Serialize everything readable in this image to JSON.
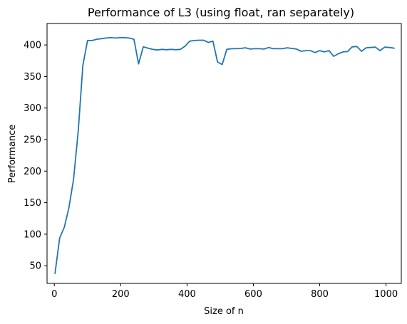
{
  "chart_data": {
    "type": "line",
    "title": "Performance of L3 (using float, ran separately)",
    "xlabel": "Size of n",
    "ylabel": "Performance",
    "xlim": [
      -22,
      1046
    ],
    "ylim": [
      22,
      434
    ],
    "x_ticks": [
      0,
      200,
      400,
      600,
      800,
      1000
    ],
    "y_ticks": [
      50,
      100,
      150,
      200,
      250,
      300,
      350,
      400
    ],
    "grid": false,
    "line_color": "#1f77b4",
    "series": [
      {
        "x": [
          2,
          16,
          30,
          44,
          58,
          72,
          86,
          100,
          114,
          128,
          142,
          156,
          170,
          184,
          198,
          212,
          226,
          240,
          254,
          268,
          282,
          296,
          310,
          324,
          338,
          352,
          366,
          380,
          394,
          408,
          422,
          436,
          450,
          464,
          478,
          492,
          506,
          520,
          534,
          548,
          562,
          576,
          590,
          604,
          618,
          632,
          646,
          660,
          674,
          688,
          702,
          716,
          730,
          744,
          758,
          772,
          786,
          800,
          814,
          828,
          842,
          856,
          870,
          884,
          898,
          912,
          926,
          940,
          954,
          968,
          982,
          996,
          1010,
          1024
        ],
        "y": [
          38,
          94,
          111,
          142,
          187,
          263,
          368,
          407,
          407,
          409,
          410,
          411,
          411.5,
          411,
          411.5,
          411.5,
          411,
          409,
          370,
          397,
          395,
          393,
          392,
          393,
          392.5,
          393,
          392.5,
          393,
          398,
          406,
          407,
          407.5,
          407.5,
          404,
          406,
          373,
          369,
          393,
          394,
          394,
          394.5,
          395.5,
          393.5,
          394,
          394,
          393.5,
          396,
          394,
          394,
          394,
          395.5,
          394.5,
          393.5,
          390,
          391,
          391,
          388,
          391,
          389,
          391,
          382,
          386,
          389,
          389.5,
          397,
          397.5,
          390,
          395.5,
          396,
          396.5,
          391,
          396.5,
          396,
          395
        ]
      }
    ]
  }
}
